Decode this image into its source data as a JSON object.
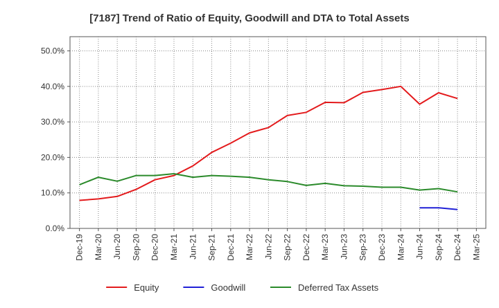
{
  "chart_data": {
    "type": "line",
    "title": "[7187]  Trend of Ratio of Equity, Goodwill and DTA to Total Assets",
    "xlabel": "",
    "ylabel": "",
    "ylim": [
      0,
      54
    ],
    "yticks": [
      0,
      10,
      20,
      30,
      40,
      50
    ],
    "ytick_labels": [
      "0.0%",
      "10.0%",
      "20.0%",
      "30.0%",
      "40.0%",
      "50.0%"
    ],
    "x": [
      "Dec-19",
      "Mar-20",
      "Jun-20",
      "Sep-20",
      "Dec-20",
      "Mar-21",
      "Jun-21",
      "Sep-21",
      "Dec-21",
      "Mar-22",
      "Jun-22",
      "Sep-22",
      "Dec-22",
      "Mar-23",
      "Jun-23",
      "Sep-23",
      "Dec-23",
      "Mar-24",
      "Jun-24",
      "Sep-24",
      "Dec-24",
      "Mar-25"
    ],
    "grid": true,
    "legend_position": "bottom",
    "series": [
      {
        "name": "Equity",
        "color": "#e31a1c",
        "values": [
          7.9,
          8.3,
          9.0,
          11.0,
          13.7,
          14.9,
          17.6,
          21.4,
          24.0,
          26.9,
          28.4,
          31.8,
          32.7,
          35.5,
          35.4,
          38.3,
          39.1,
          40.0,
          35.0,
          38.2,
          36.6,
          null
        ]
      },
      {
        "name": "Goodwill",
        "color": "#1f1fd6",
        "values": [
          null,
          null,
          null,
          null,
          null,
          null,
          null,
          null,
          null,
          null,
          null,
          null,
          null,
          null,
          null,
          null,
          null,
          null,
          5.8,
          5.8,
          5.3,
          null
        ]
      },
      {
        "name": "Deferred Tax Assets",
        "color": "#2a8a2a",
        "values": [
          12.3,
          14.4,
          13.3,
          14.9,
          14.9,
          15.4,
          14.4,
          14.9,
          14.7,
          14.4,
          13.7,
          13.2,
          12.1,
          12.7,
          12.0,
          11.9,
          11.6,
          11.6,
          10.8,
          11.2,
          10.3,
          null
        ]
      }
    ]
  }
}
